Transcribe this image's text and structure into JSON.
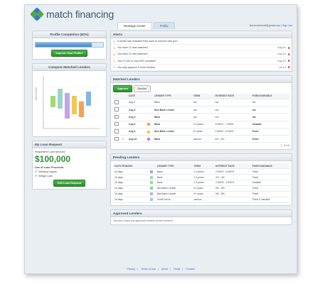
{
  "brand": {
    "logo_text": "match financing"
  },
  "tabs": [
    {
      "label": "Message Center"
    },
    {
      "label": "Profile"
    }
  ],
  "user": {
    "email": "lisa.mcdermott@gmail.com",
    "separator": "|",
    "signout": "Sign Out"
  },
  "profile": {
    "title": "Profile Completion (83%)",
    "progress": 0.83,
    "button": "Improve Your Profile!"
  },
  "compare": {
    "title": "Compare Matched Lenders",
    "ylabel": "Interest Rate"
  },
  "loan": {
    "title": "My Loan Request",
    "requested_label": "Requested Loan Amount:",
    "amount": "$100,000",
    "use_label": "Use of Loan Proceeds:",
    "uses": [
      "Working Capital",
      "Bridge Loan"
    ],
    "button": "Edit Loan Request"
  },
  "alerts": {
    "title": "Alerts",
    "items": [
      {
        "icon": "star",
        "text": "A lender has indicated they want to connect with you!",
        "date": ""
      },
      {
        "icon": "star",
        "text": "You have 12 new matches!",
        "date": "Aug 16"
      },
      {
        "icon": "star",
        "text": "You have 11 new matches!",
        "date": "Aug 15"
      },
      {
        "icon": "warning",
        "text_pre": "Your ",
        "link": "Profile",
        "text_post": " is only 82% complete!",
        "date": "Aug 15"
      },
      {
        "icon": "warning",
        "text": "You may approve 5 more lenders.",
        "date": "Jul 12"
      }
    ]
  },
  "matched": {
    "title": "Matched Lenders",
    "approve": "Approve",
    "decline": "Decline",
    "columns": [
      "DATE",
      "LENDER TYPE",
      "TERM",
      "INTEREST RATE",
      "FIXED/VARIABLE"
    ],
    "rows": [
      {
        "star": false,
        "date": "Aug 3",
        "color": "",
        "type": "Bank",
        "term": "n/a",
        "rate": "n/a",
        "fv": "n/a",
        "bold": false
      },
      {
        "star": false,
        "date": "Aug 3",
        "color": "",
        "type": "Non-Bank Lender",
        "term": "n/a",
        "rate": "n/a",
        "fv": "n/a",
        "bold": true
      },
      {
        "star": false,
        "date": "Aug 3",
        "color": "",
        "type": "Bank",
        "term": "n/a",
        "rate": "n/a",
        "fv": "n/a",
        "bold": true
      },
      {
        "star": false,
        "date": "Aug 3",
        "color": "#f2a15a",
        "type": "Bank",
        "term": "2-3 years",
        "rate": "3.000% - 7.000%",
        "fv": "Variable",
        "bold": true
      },
      {
        "star": false,
        "date": "Aug 3",
        "color": "#f2c94c",
        "type": "Non-Bank Lender",
        "term": "6+ years",
        "rate": "3.000% - 8.000%",
        "fv": "Fixed",
        "bold": true
      },
      {
        "star": true,
        "date": "Aug 15",
        "color": "#b98be0",
        "type": "Bank",
        "term": "various",
        "rate": "5% - 6%",
        "fv": "Fixed",
        "bold": true
      }
    ],
    "pager": "1 - 6 of 6"
  },
  "pending": {
    "title": "Pending Lenders",
    "columns": [
      "DAYS PENDING",
      "LENDER TYPE",
      "TERM",
      "INTEREST RATE",
      "FIXED/VARIABLE"
    ],
    "rows": [
      {
        "days": "16 days",
        "color": "#7fb6e6",
        "type": "Bank",
        "term": "2-3 years",
        "rate": "2.000% - 4.000%",
        "fv": "Fixed"
      },
      {
        "days": "16 days",
        "color": "#9ad6c8",
        "type": "Bank",
        "term": "2-3 years",
        "rate": "2% - 4%",
        "fv": "Fixed"
      },
      {
        "days": "16 days",
        "color": "#a4d86e",
        "type": "Bank",
        "term": "2-3 years",
        "rate": "2.000% - 4.000%",
        "fv": "Variable"
      },
      {
        "days": "16 days",
        "color": "#7bd3b0",
        "type": "Non-Bank Lender",
        "term": "6+ years",
        "rate": "6% - 8%",
        "fv": "Fixed"
      },
      {
        "days": "16 days",
        "color": "#c4a3e6",
        "type": "Non-Bank Lender",
        "term": "6+ years",
        "rate": "6% - 8%",
        "fv": "Fixed"
      },
      {
        "days": "16 days",
        "color": "#8ec9f0",
        "type": "Credit Union",
        "term": "various",
        "rate": "",
        "fv": "Fixed & Variable"
      }
    ]
  },
  "approved": {
    "title": "Approved Lenders",
    "empty": "You don't have any approved lenders at this moment."
  },
  "footer": {
    "links": [
      "Privacy",
      "Terms of Use",
      "About",
      "FAQs",
      "Contact"
    ]
  }
}
